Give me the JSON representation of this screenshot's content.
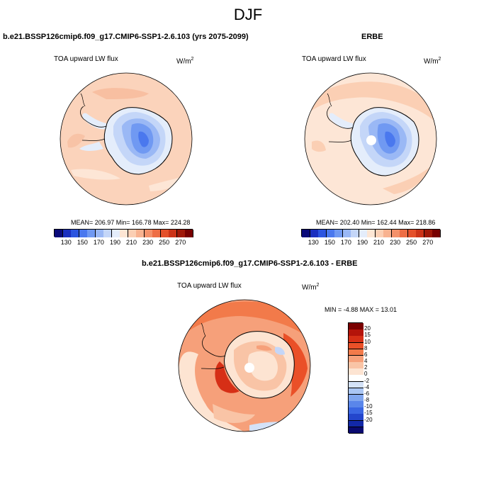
{
  "figure": {
    "title": "DJF"
  },
  "panels": {
    "model": {
      "title": "b.e21.BSSP126cmip6.f09_g17.CMIP6-SSP1-2.6.103 (yrs 2075-2099)",
      "variable": "TOA upward LW flux",
      "units": "W/m",
      "units_exp": "2",
      "stats": "MEAN= 206.97  Min= 166.78  Max= 224.28"
    },
    "obs": {
      "title": "ERBE",
      "variable": "TOA upward LW flux",
      "units": "W/m",
      "units_exp": "2",
      "stats": "MEAN= 202.40  Min= 162.44  Max= 218.86"
    },
    "diff": {
      "title": "b.e21.BSSP126cmip6.f09_g17.CMIP6-SSP1-2.6.103 - ERBE",
      "variable": "TOA upward LW flux",
      "units": "W/m",
      "units_exp": "2",
      "stats": "MIN =  -4.88 MAX =  13.01"
    }
  },
  "colorbar_abs": {
    "colors": [
      "#0a0a7a",
      "#1a2fbf",
      "#2c55e0",
      "#4a78ee",
      "#7099f2",
      "#9ab8f5",
      "#c4d6f8",
      "#e4edfb",
      "#fde6d4",
      "#fbcfb4",
      "#f8b290",
      "#f4916a",
      "#ee6e45",
      "#e4502a",
      "#cc3318",
      "#a01808",
      "#780000"
    ],
    "ticks": [
      "130",
      "150",
      "170",
      "190",
      "210",
      "230",
      "250",
      "270"
    ]
  },
  "colorbar_diff": {
    "colors": [
      "#7a0000",
      "#b4140a",
      "#d62f16",
      "#ea5028",
      "#f27a4a",
      "#f6a07a",
      "#f9c4a6",
      "#fde4d2",
      "#ffffff",
      "#d4e2f8",
      "#aac6f4",
      "#80a6ef",
      "#5a86ea",
      "#3a66e2",
      "#2446cc",
      "#1228a8",
      "#0a0a70"
    ],
    "ticks": [
      "20",
      "15",
      "10",
      "8",
      "6",
      "4",
      "2",
      "0",
      "-2",
      "-4",
      "-6",
      "-8",
      "-10",
      "-15",
      "-20"
    ]
  }
}
